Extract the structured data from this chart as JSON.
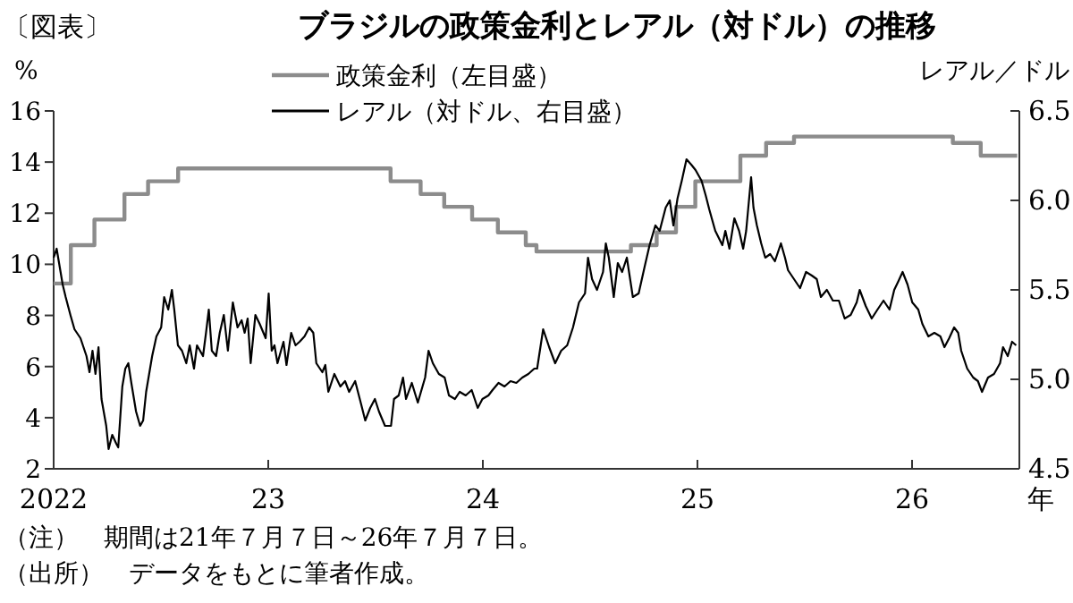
{
  "chart_data": {
    "type": "line",
    "title": "ブラジルの政策金利とレアル（対ドル）の推移",
    "subtitle": "〔図表〕",
    "ylabel": "%",
    "y2label": "レアル／ドル",
    "xlabel": "年",
    "annotations": [
      "（注）　期間は21年７月７日～26年７月７日。",
      "（出所）　データをもとに筆者作成。"
    ],
    "xlim": [
      2022,
      2026.5
    ],
    "xticks": [
      {
        "value": 2022,
        "label": "2022"
      },
      {
        "value": 2023,
        "label": "23"
      },
      {
        "value": 2024,
        "label": "24"
      },
      {
        "value": 2025,
        "label": "25"
      },
      {
        "value": 2026,
        "label": "26"
      }
    ],
    "ylim": [
      2,
      16
    ],
    "yticks": [
      2,
      4,
      6,
      8,
      10,
      12,
      14,
      16
    ],
    "y2lim": [
      4.5,
      6.5
    ],
    "y2ticks": [
      4.5,
      {
        "value": 5,
        "label": "5.0"
      },
      5.5,
      {
        "value": 6,
        "label": "6.0"
      },
      6.5
    ],
    "legend": "top",
    "grid": false,
    "series": [
      {
        "name": "政策金利（左目盛）",
        "color": "#8c8c8c",
        "type": "step",
        "x": [
          2022.0,
          2022.08,
          2022.19,
          2022.33,
          2022.44,
          2022.58,
          2023.57,
          2023.71,
          2023.82,
          2023.95,
          2024.07,
          2024.2,
          2024.25,
          2024.69,
          2024.81,
          2024.9,
          2024.99,
          2025.2,
          2025.32,
          2025.45,
          2026.19,
          2026.32,
          2026.49
        ],
        "values": [
          9.25,
          10.75,
          11.75,
          12.75,
          13.25,
          13.75,
          13.25,
          12.75,
          12.25,
          11.75,
          11.25,
          10.75,
          10.5,
          10.75,
          11.25,
          12.25,
          13.25,
          14.25,
          14.75,
          15,
          14.75,
          14.25,
          14.25
        ]
      },
      {
        "name": "レアル（対ドル、右目盛）",
        "color": "#000000",
        "type": "line",
        "axis": "y2",
        "x": [
          2022.0,
          2022.014,
          2022.028,
          2022.042,
          2022.056,
          2022.078,
          2022.097,
          2022.125,
          2022.153,
          2022.167,
          2022.181,
          2022.195,
          2022.209,
          2022.223,
          2022.245,
          2022.256,
          2022.273,
          2022.292,
          2022.301,
          2022.32,
          2022.334,
          2022.348,
          2022.362,
          2022.384,
          2022.403,
          2022.417,
          2022.431,
          2022.459,
          2022.479,
          2022.501,
          2022.515,
          2022.534,
          2022.551,
          2022.562,
          2022.579,
          2022.598,
          2022.618,
          2022.634,
          2022.654,
          2022.668,
          2022.696,
          2022.71,
          2022.723,
          2022.737,
          2022.757,
          2022.774,
          2022.793,
          2022.812,
          2022.835,
          2022.857,
          2022.876,
          2022.89,
          2022.904,
          2022.918,
          2022.94,
          2022.96,
          2022.988,
          2023.002,
          2023.016,
          2023.029,
          2023.043,
          2023.071,
          2023.085,
          2023.107,
          2023.127,
          2023.146,
          2023.169,
          2023.191,
          2023.21,
          2023.224,
          2023.252,
          2023.266,
          2023.28,
          2023.294,
          2023.308,
          2023.336,
          2023.358,
          2023.377,
          2023.405,
          2023.433,
          2023.452,
          2023.475,
          2023.497,
          2023.516,
          2023.544,
          2023.572,
          2023.586,
          2023.608,
          2023.628,
          2023.642,
          2023.669,
          2023.697,
          2023.731,
          2023.747,
          2023.767,
          2023.795,
          2023.822,
          2023.842,
          2023.87,
          2023.892,
          2023.92,
          2023.948,
          2023.976,
          2023.998,
          2024.026,
          2024.045,
          2024.073,
          2024.101,
          2024.129,
          2024.156,
          2024.184,
          2024.212,
          2024.24,
          2024.253,
          2024.281,
          2024.309,
          2024.337,
          2024.365,
          2024.393,
          2024.42,
          2024.448,
          2024.476,
          2024.49,
          2024.509,
          2024.532,
          2024.56,
          2024.573,
          2024.587,
          2024.61,
          2024.629,
          2024.649,
          2024.671,
          2024.699,
          2024.726,
          2024.754,
          2024.777,
          2024.804,
          2024.824,
          2024.852,
          2024.871,
          2024.888,
          2024.907,
          2024.927,
          2024.949,
          2024.971,
          2024.991,
          2025.019,
          2025.038,
          2025.055,
          2025.083,
          2025.116,
          2025.13,
          2025.149,
          2025.172,
          2025.194,
          2025.213,
          2025.227,
          2025.25,
          2025.261,
          2025.277,
          2025.297,
          2025.316,
          2025.339,
          2025.361,
          2025.389,
          2025.408,
          2025.422,
          2025.45,
          2025.478,
          2025.506,
          2025.533,
          2025.556,
          2025.575,
          2025.603,
          2025.631,
          2025.659,
          2025.686,
          2025.714,
          2025.742,
          2025.756,
          2025.784,
          2025.812,
          2025.839,
          2025.867,
          2025.895,
          2025.917,
          2025.937,
          2025.956,
          2025.979,
          2026.001,
          2026.029,
          2026.048,
          2026.076,
          2026.104,
          2026.132,
          2026.151,
          2026.173,
          2026.196,
          2026.215,
          2026.229,
          2026.257,
          2026.285,
          2026.307,
          2026.326,
          2026.354,
          2026.382,
          2026.41,
          2026.424,
          2026.446,
          2026.466,
          2026.485
        ],
        "values": [
          5.68,
          5.73,
          5.63,
          5.53,
          5.46,
          5.36,
          5.28,
          5.23,
          5.13,
          5.04,
          5.16,
          5.03,
          5.18,
          4.89,
          4.74,
          4.61,
          4.69,
          4.64,
          4.62,
          4.96,
          5.06,
          5.09,
          4.98,
          4.82,
          4.74,
          4.77,
          4.93,
          5.13,
          5.24,
          5.29,
          5.46,
          5.39,
          5.5,
          5.39,
          5.19,
          5.16,
          5.09,
          5.19,
          5.06,
          5.19,
          5.13,
          5.26,
          5.39,
          5.16,
          5.13,
          5.26,
          5.36,
          5.16,
          5.43,
          5.29,
          5.33,
          5.26,
          5.34,
          5.09,
          5.36,
          5.31,
          5.23,
          5.48,
          5.16,
          5.19,
          5.09,
          5.21,
          5.08,
          5.26,
          5.19,
          5.21,
          5.24,
          5.29,
          5.26,
          5.09,
          5.04,
          5.08,
          4.93,
          4.98,
          5.03,
          4.96,
          4.99,
          4.93,
          4.99,
          4.86,
          4.77,
          4.84,
          4.89,
          4.82,
          4.74,
          4.74,
          4.89,
          4.91,
          5.01,
          4.89,
          4.98,
          4.87,
          5.01,
          5.16,
          5.09,
          5.03,
          5.01,
          4.91,
          4.89,
          4.93,
          4.91,
          4.94,
          4.84,
          4.89,
          4.91,
          4.94,
          4.98,
          4.96,
          4.99,
          4.98,
          5.01,
          5.03,
          5.06,
          5.06,
          5.28,
          5.18,
          5.09,
          5.16,
          5.19,
          5.29,
          5.43,
          5.48,
          5.68,
          5.56,
          5.5,
          5.6,
          5.76,
          5.68,
          5.46,
          5.65,
          5.6,
          5.68,
          5.46,
          5.48,
          5.63,
          5.75,
          5.86,
          5.83,
          5.96,
          6.0,
          5.86,
          6.01,
          6.11,
          6.23,
          6.2,
          6.17,
          6.11,
          6.03,
          5.95,
          5.83,
          5.75,
          5.83,
          5.73,
          5.9,
          5.83,
          5.73,
          5.83,
          6.13,
          5.96,
          5.86,
          5.76,
          5.68,
          5.7,
          5.66,
          5.76,
          5.68,
          5.61,
          5.56,
          5.51,
          5.6,
          5.58,
          5.56,
          5.46,
          5.5,
          5.44,
          5.44,
          5.34,
          5.36,
          5.43,
          5.5,
          5.41,
          5.34,
          5.39,
          5.44,
          5.39,
          5.5,
          5.55,
          5.6,
          5.53,
          5.43,
          5.39,
          5.31,
          5.24,
          5.26,
          5.24,
          5.18,
          5.23,
          5.29,
          5.26,
          5.16,
          5.06,
          5.01,
          4.99,
          4.93,
          5.01,
          5.03,
          5.09,
          5.18,
          5.13,
          5.21,
          5.19
        ]
      }
    ]
  }
}
